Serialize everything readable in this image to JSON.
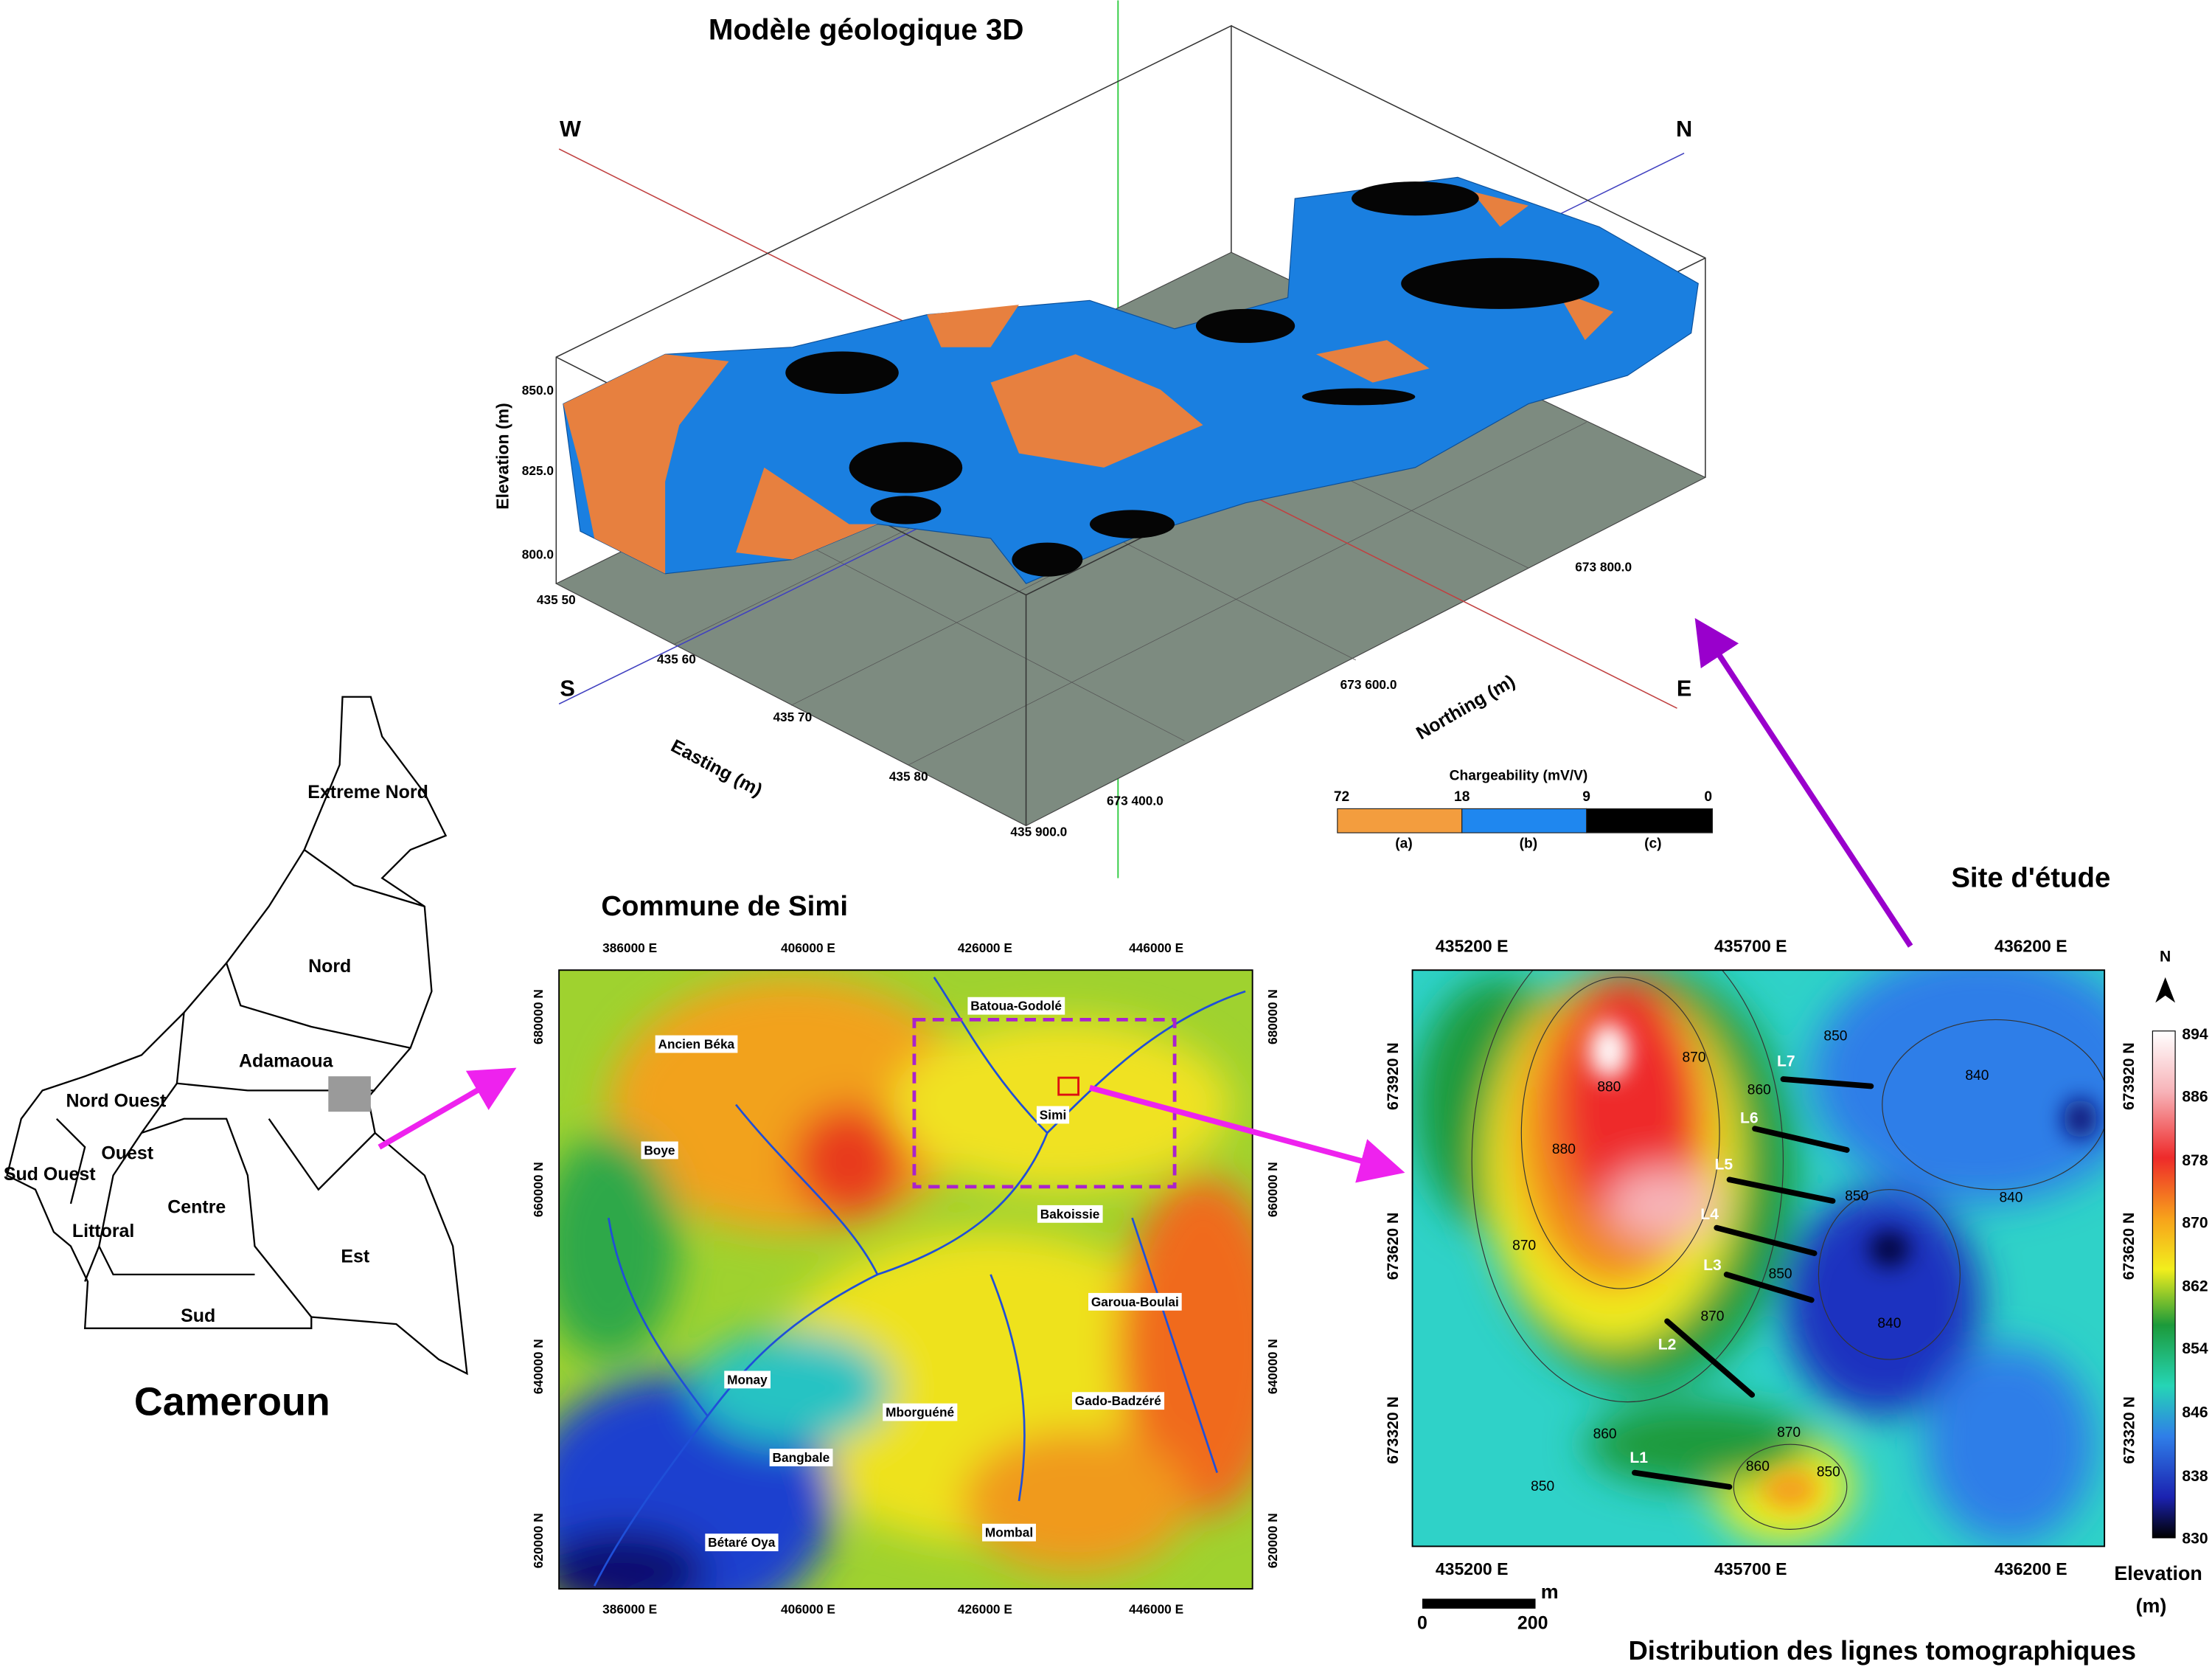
{
  "model_3d": {
    "title": "Modèle géologique 3D",
    "directions": {
      "W": "W",
      "N": "N",
      "S": "S",
      "E": "E"
    },
    "elevation_axis": {
      "label": "Elevation (m)",
      "ticks": [
        "850.0",
        "825.0",
        "800.0"
      ]
    },
    "easting_axis": {
      "label": "Easting (m)",
      "ticks": [
        "435 50",
        "435 60",
        "435 70",
        "435 80",
        "435 900.0"
      ]
    },
    "northing_axis": {
      "label": "Northing (m)",
      "ticks": [
        "673 400.0",
        "673 600.0",
        "673 800.0"
      ]
    },
    "legend": {
      "title": "Chargeability (mV/V)",
      "ticks": [
        "72",
        "18",
        "9",
        "0"
      ],
      "classes": [
        "(a)",
        "(b)",
        "(c)"
      ]
    }
  },
  "cameroon_map": {
    "title": "Cameroun",
    "regions": [
      "Extreme Nord",
      "Nord",
      "Adamaoua",
      "Nord Ouest",
      "Ouest",
      "Sud Ouest",
      "Littoral",
      "Centre",
      "Est",
      "Sud"
    ]
  },
  "simi_map": {
    "title": "Commune de Simi",
    "x_ticks": [
      "386000 E",
      "406000 E",
      "426000 E",
      "446000 E"
    ],
    "y_ticks": [
      "680000 N",
      "660000 N",
      "640000 N",
      "620000 N"
    ],
    "places": [
      "Batoua-Godolé",
      "Ancien Béka",
      "Simi",
      "Boye",
      "Bakoissie",
      "Garoua-Boulai",
      "Monay",
      "Gado-Badzéré",
      "Mborguéné",
      "Bangbale",
      "Mombal",
      "Bétaré Oya"
    ]
  },
  "site_map": {
    "title": "Site d'étude",
    "x_ticks": [
      "435200 E",
      "435700 E",
      "436200 E"
    ],
    "y_ticks": [
      "673920 N",
      "673620 N",
      "673320 N"
    ],
    "lines": [
      "L1",
      "L2",
      "L3",
      "L4",
      "L5",
      "L6",
      "L7"
    ],
    "contour_labels": [
      "880",
      "870",
      "850",
      "860",
      "840",
      "880",
      "850",
      "870",
      "840",
      "850",
      "870",
      "840",
      "860",
      "860",
      "850",
      "850",
      "870"
    ],
    "north": "N",
    "colorbar": {
      "ticks": [
        "894",
        "886",
        "878",
        "870",
        "862",
        "854",
        "846",
        "838",
        "830"
      ],
      "label": "Elevation",
      "unit": "(m)"
    },
    "scale": {
      "unit": "m",
      "ticks": [
        "0",
        "200"
      ]
    },
    "caption": "Distribution des lignes tomographiques"
  }
}
